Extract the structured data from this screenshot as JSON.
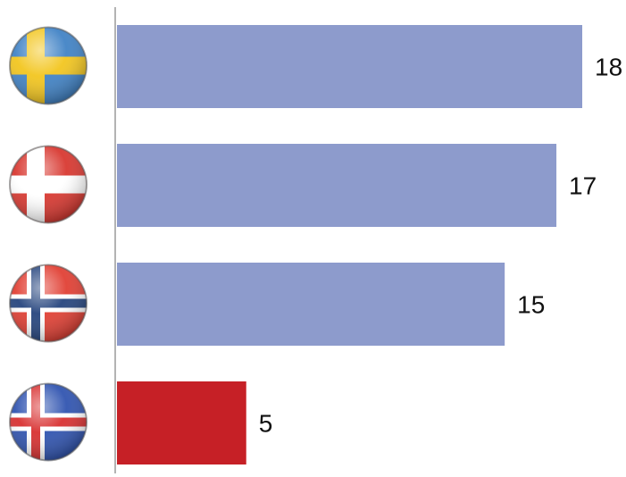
{
  "chart_data": {
    "type": "bar",
    "orientation": "horizontal",
    "categories": [
      "sweden-flag",
      "denmark-flag",
      "norway-flag",
      "iceland-flag"
    ],
    "values": [
      18,
      17,
      15,
      5
    ],
    "xlim": [
      0,
      18
    ],
    "grid": false,
    "legend": "none",
    "bar_colors": [
      "#8d9bcc",
      "#8d9bcc",
      "#8d9bcc",
      "#c62026"
    ],
    "axis_color": "#9a9a9a",
    "title": "",
    "xlabel": "",
    "ylabel": ""
  },
  "flags": [
    {
      "icon": "sweden-flag-icon",
      "field": "#3b7fc4",
      "cross": "#f2c418",
      "inner": ""
    },
    {
      "icon": "denmark-flag-icon",
      "field": "#d7322a",
      "cross": "#ffffff",
      "inner": ""
    },
    {
      "icon": "norway-flag-icon",
      "field": "#e03a2e",
      "cross": "#ffffff",
      "inner": "#1f3f7a"
    },
    {
      "icon": "iceland-flag-icon",
      "field": "#2a4fae",
      "cross": "#ffffff",
      "inner": "#d72a2a"
    }
  ]
}
